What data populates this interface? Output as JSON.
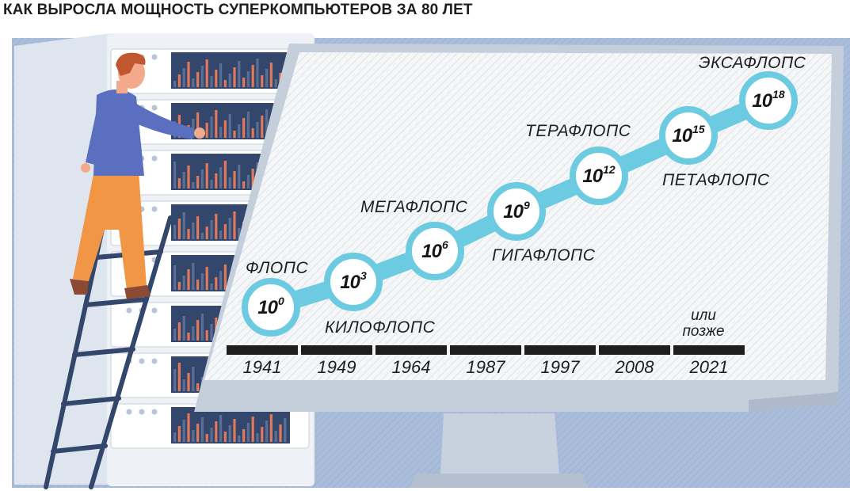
{
  "title": "КАК ВЫРОСЛА МОЩНОСТЬ СУПЕРКОМПЬЮТЕРОВ ЗА 80 ЛЕТ",
  "colors": {
    "background_panel": "#a9bcd9",
    "server_body": "#eef1f6",
    "screen": "#f4f6f8",
    "monitor_frame": "#c5cfdb",
    "path": "#6ccbe0",
    "node_ring": "#6ccbe0",
    "bar_dark": "#33466b",
    "bar_accent": "#e2785a",
    "timeline": "#1e1e1e",
    "person_shirt": "#5a6fc0",
    "person_pants": "#f19644",
    "ladder": "#33466b"
  },
  "milestones": [
    {
      "base": "10",
      "exp": "0",
      "label": "ФЛОПС",
      "year": "1941"
    },
    {
      "base": "10",
      "exp": "3",
      "label": "КИЛОФЛОПС",
      "year": "1949"
    },
    {
      "base": "10",
      "exp": "6",
      "label": "МЕГАФЛОПС",
      "year": "1964"
    },
    {
      "base": "10",
      "exp": "9",
      "label": "ГИГАФЛОПС",
      "year": "1987"
    },
    {
      "base": "10",
      "exp": "12",
      "label": "ТЕРАФЛОПС",
      "year": "1997"
    },
    {
      "base": "10",
      "exp": "15",
      "label": "ПЕТАФЛОПС",
      "year": "2008"
    },
    {
      "base": "10",
      "exp": "18",
      "label": "ЭКСАФЛОПС",
      "year": "2021"
    }
  ],
  "last_year_note": [
    "или",
    "позже"
  ]
}
